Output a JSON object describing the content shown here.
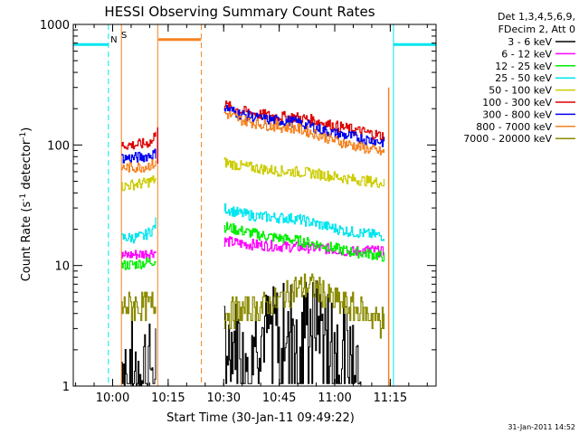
{
  "chart_data": {
    "type": "line",
    "title": "HESSI Observing Summary Count Rates",
    "xlabel": "Start Time (30-Jan-11 09:49:22)",
    "ylabel_prefix": "Count Rate (s",
    "ylabel_sup1": "-1",
    "ylabel_mid": " detector",
    "ylabel_sup2": "-1",
    "ylabel_suffix": ")",
    "y_scale": "log",
    "ylim": [
      1,
      1000
    ],
    "xlim": [
      "09:49:22",
      "11:27:22"
    ],
    "x_ticks": [
      {
        "label": "10:00",
        "minutes": 10.63
      },
      {
        "label": "10:15",
        "minutes": 25.63
      },
      {
        "label": "10:30",
        "minutes": 40.63
      },
      {
        "label": "10:45",
        "minutes": 55.63
      },
      {
        "label": "11:00",
        "minutes": 70.63
      },
      {
        "label": "11:15",
        "minutes": 85.63
      }
    ],
    "y_ticks": [
      {
        "label": "1",
        "value": 1
      },
      {
        "label": "10",
        "value": 10
      },
      {
        "label": "100",
        "value": 100
      },
      {
        "label": "1000",
        "value": 1000
      }
    ],
    "legend_header": [
      "Det 1,3,4,5,6,9,",
      "FDecim 2, Att 0"
    ],
    "markers": {
      "N": {
        "label": "N",
        "color": "#00e5ee"
      },
      "S": {
        "label": "S",
        "color": "#f58220"
      }
    },
    "series": [
      {
        "name": "3 - 6 keV",
        "color": "#000000",
        "segments": [
          [
            [
              13.0,
              1.6
            ],
            [
              15.0,
              1.9
            ],
            [
              17.0,
              1.4
            ],
            [
              19.0,
              1.8
            ],
            [
              21.0,
              1.5
            ],
            [
              22.3,
              1.7
            ]
          ],
          [
            [
              40.7,
              2.3
            ],
            [
              45.0,
              2.6
            ],
            [
              50.0,
              2.8
            ],
            [
              55.0,
              3.2
            ],
            [
              60.0,
              3.8
            ],
            [
              63.0,
              3.9
            ],
            [
              66.0,
              3.5
            ],
            [
              70.0,
              2.9
            ],
            [
              75.0,
              2.5
            ],
            [
              78.0,
              1.8
            ]
          ]
        ]
      },
      {
        "name": "6 - 12 keV",
        "color": "#ff00ff",
        "segments": [
          [
            [
              13.0,
              12.0
            ],
            [
              16.0,
              12.3
            ],
            [
              19.0,
              12.5
            ],
            [
              22.3,
              13.0
            ]
          ],
          [
            [
              40.7,
              16.0
            ],
            [
              45.0,
              15.2
            ],
            [
              50.0,
              14.8
            ],
            [
              55.0,
              14.5
            ],
            [
              60.0,
              14.2
            ],
            [
              65.0,
              14.0
            ],
            [
              70.0,
              13.6
            ],
            [
              75.0,
              13.0
            ],
            [
              80.0,
              13.5
            ],
            [
              84.0,
              12.8
            ]
          ]
        ]
      },
      {
        "name": "12 - 25 keV",
        "color": "#00ee00",
        "segments": [
          [
            [
              13.0,
              10.0
            ],
            [
              16.0,
              10.2
            ],
            [
              19.0,
              10.5
            ],
            [
              22.3,
              11.0
            ]
          ],
          [
            [
              40.7,
              21.0
            ],
            [
              45.0,
              19.5
            ],
            [
              50.0,
              18.0
            ],
            [
              55.0,
              17.0
            ],
            [
              60.0,
              16.2
            ],
            [
              65.0,
              15.2
            ],
            [
              70.0,
              14.0
            ],
            [
              75.0,
              13.0
            ],
            [
              80.0,
              12.5
            ],
            [
              84.0,
              11.8
            ]
          ]
        ]
      },
      {
        "name": "25 - 50 keV",
        "color": "#00e5ee",
        "segments": [
          [
            [
              0.0,
              680.0
            ],
            [
              9.5,
              680.0
            ]
          ],
          [
            [
              13.0,
              17.0
            ],
            [
              16.0,
              17.0
            ],
            [
              19.0,
              17.5
            ],
            [
              21.5,
              20.0
            ],
            [
              22.3,
              23.0
            ]
          ],
          [
            [
              40.7,
              30.0
            ],
            [
              45.0,
              27.0
            ],
            [
              50.0,
              25.5
            ],
            [
              55.0,
              25.0
            ],
            [
              60.0,
              24.5
            ],
            [
              65.0,
              22.5
            ],
            [
              70.0,
              20.5
            ],
            [
              75.0,
              19.0
            ],
            [
              80.0,
              18.2
            ],
            [
              84.0,
              17.5
            ]
          ],
          [
            [
              86.5,
              680.0
            ],
            [
              98.0,
              680.0
            ]
          ]
        ]
      },
      {
        "name": "50 - 100 keV",
        "color": "#cccc00",
        "segments": [
          [
            [
              13.0,
              45.0
            ],
            [
              16.0,
              47.0
            ],
            [
              19.0,
              48.0
            ],
            [
              22.3,
              52.0
            ]
          ],
          [
            [
              40.7,
              72.0
            ],
            [
              45.0,
              67.0
            ],
            [
              50.0,
              64.0
            ],
            [
              55.0,
              61.0
            ],
            [
              60.0,
              60.0
            ],
            [
              65.0,
              58.0
            ],
            [
              70.0,
              55.0
            ],
            [
              75.0,
              52.0
            ],
            [
              80.0,
              50.0
            ],
            [
              84.0,
              48.0
            ]
          ]
        ]
      },
      {
        "name": "100 - 300 keV",
        "color": "#dd0000",
        "segments": [
          [
            [
              13.0,
              100.0
            ],
            [
              16.0,
              100.0
            ],
            [
              19.0,
              102.0
            ],
            [
              21.5,
              108.0
            ],
            [
              22.3,
              140.0
            ]
          ],
          [
            [
              40.7,
              215.0
            ],
            [
              45.0,
              192.0
            ],
            [
              50.0,
              180.0
            ],
            [
              55.0,
              172.0
            ],
            [
              60.0,
              170.0
            ],
            [
              65.0,
              160.0
            ],
            [
              70.0,
              145.0
            ],
            [
              75.0,
              135.0
            ],
            [
              80.0,
              125.0
            ],
            [
              84.0,
              118.0
            ]
          ]
        ]
      },
      {
        "name": "300 - 800 keV",
        "color": "#0000ee",
        "segments": [
          [
            [
              13.0,
              78.0
            ],
            [
              16.0,
              78.0
            ],
            [
              19.0,
              80.0
            ],
            [
              22.3,
              85.0
            ]
          ],
          [
            [
              40.7,
              205.0
            ],
            [
              45.0,
              180.0
            ],
            [
              50.0,
              165.0
            ],
            [
              55.0,
              160.0
            ],
            [
              60.0,
              155.0
            ],
            [
              65.0,
              140.0
            ],
            [
              70.0,
              125.0
            ],
            [
              75.0,
              118.0
            ],
            [
              80.0,
              110.0
            ],
            [
              84.0,
              105.0
            ]
          ]
        ]
      },
      {
        "name": "800 - 7000 keV",
        "color": "#f58220",
        "segments": [
          [
            [
              13.0,
              65.0
            ],
            [
              16.0,
              65.0
            ],
            [
              19.0,
              66.0
            ],
            [
              22.3,
              70.0
            ]
          ],
          [
            [
              23.0,
              750.0
            ],
            [
              34.6,
              750.0
            ]
          ],
          [
            [
              40.7,
              185.0
            ],
            [
              45.0,
              162.0
            ],
            [
              50.0,
              150.0
            ],
            [
              55.0,
              142.0
            ],
            [
              60.0,
              138.0
            ],
            [
              65.0,
              125.0
            ],
            [
              70.0,
              110.0
            ],
            [
              75.0,
              100.0
            ],
            [
              80.0,
              92.0
            ],
            [
              84.0,
              86.0
            ]
          ]
        ]
      },
      {
        "name": "7000 - 20000 keV",
        "color": "#8b8b00",
        "segments": [
          [
            [
              13.0,
              4.5
            ],
            [
              16.0,
              4.6
            ],
            [
              19.0,
              4.6
            ],
            [
              22.3,
              4.7
            ]
          ],
          [
            [
              40.7,
              4.0
            ],
            [
              45.0,
              4.2
            ],
            [
              50.0,
              4.5
            ],
            [
              55.0,
              5.0
            ],
            [
              58.0,
              5.8
            ],
            [
              60.0,
              6.5
            ],
            [
              64.0,
              6.8
            ],
            [
              67.0,
              6.0
            ],
            [
              70.0,
              5.2
            ],
            [
              75.0,
              4.5
            ],
            [
              80.0,
              3.9
            ],
            [
              84.0,
              3.4
            ]
          ]
        ]
      }
    ]
  },
  "footer_date": "31-Jan-2011 14:52"
}
